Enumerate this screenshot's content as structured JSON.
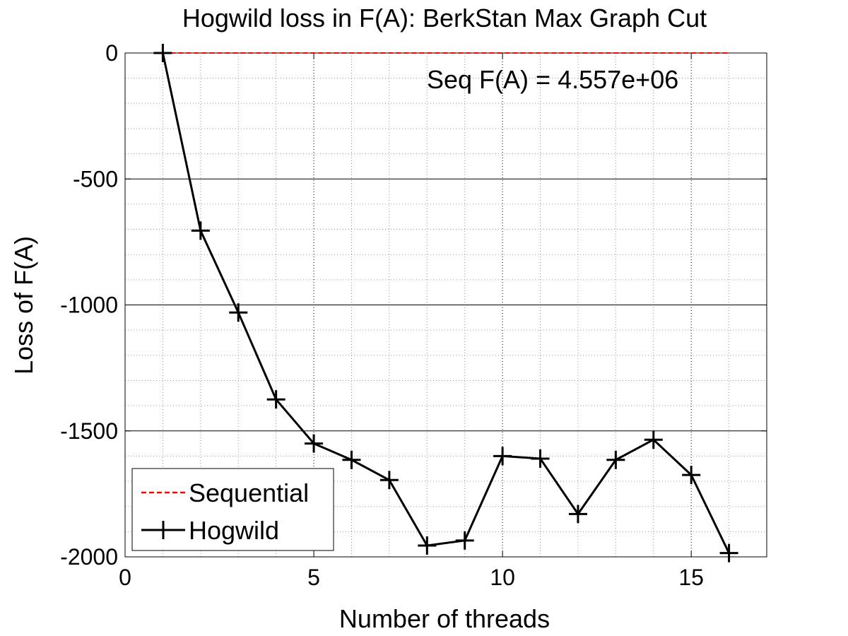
{
  "chart_data": {
    "type": "line",
    "title": "Hogwild loss in F(A): BerkStan Max Graph Cut",
    "xlabel": "Number of threads",
    "ylabel": "Loss of F(A)",
    "xlim": [
      0,
      17
    ],
    "ylim": [
      -2000,
      0
    ],
    "xticks": [
      0,
      5,
      10,
      15
    ],
    "yticks": [
      0,
      -500,
      -1000,
      -1500,
      -2000
    ],
    "grid": true,
    "annotation": "Seq F(A) = 4.557e+06",
    "legend_position": "bottom-left",
    "series": [
      {
        "name": "Sequential",
        "style": "dashed",
        "color": "#ff0000",
        "x": [
          1,
          16
        ],
        "y": [
          0,
          0
        ]
      },
      {
        "name": "Hogwild",
        "style": "solid",
        "marker": "plus",
        "color": "#000000",
        "x": [
          1,
          2,
          3,
          4,
          5,
          6,
          7,
          8,
          9,
          10,
          11,
          12,
          13,
          14,
          15,
          16
        ],
        "y": [
          0,
          -705,
          -1030,
          -1375,
          -1550,
          -1615,
          -1695,
          -1955,
          -1935,
          -1600,
          -1610,
          -1830,
          -1615,
          -1535,
          -1675,
          -1985
        ]
      }
    ]
  }
}
